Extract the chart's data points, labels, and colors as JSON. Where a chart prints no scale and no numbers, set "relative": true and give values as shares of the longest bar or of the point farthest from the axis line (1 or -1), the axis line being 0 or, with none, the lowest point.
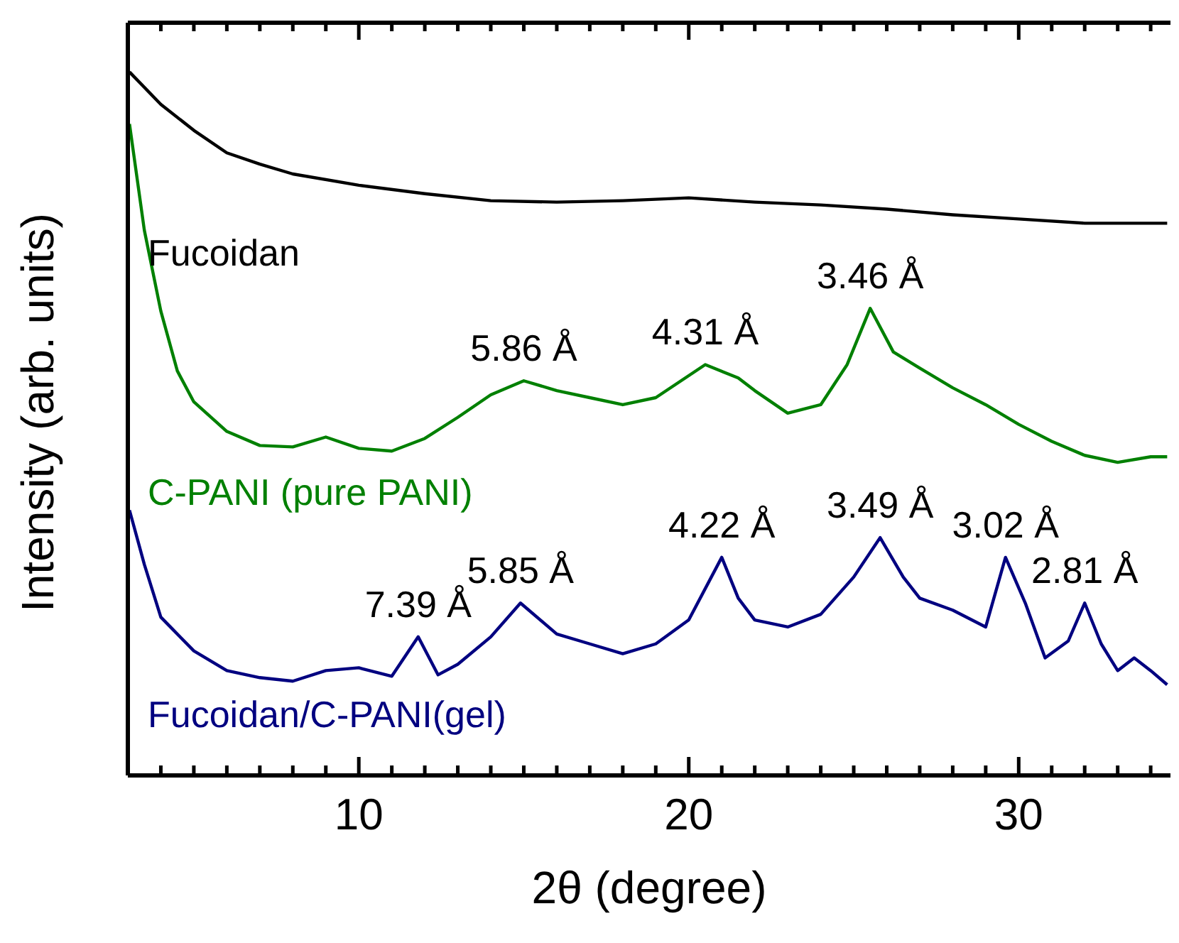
{
  "chart_data": {
    "type": "line",
    "relative": true,
    "xlabel": "2θ (degree)",
    "ylabel": "Intensity (arb. units)",
    "xlim": [
      3,
      34.6
    ],
    "xticks": [
      {
        "value": 4,
        "label": null
      },
      {
        "value": 5,
        "label": null
      },
      {
        "value": 6,
        "label": null
      },
      {
        "value": 7,
        "label": null
      },
      {
        "value": 8,
        "label": null
      },
      {
        "value": 9,
        "label": null
      },
      10,
      {
        "value": 11,
        "label": null
      },
      {
        "value": 12,
        "label": null
      },
      {
        "value": 13,
        "label": null
      },
      {
        "value": 14,
        "label": null
      },
      {
        "value": 15,
        "label": null
      },
      {
        "value": 16,
        "label": null
      },
      {
        "value": 17,
        "label": null
      },
      {
        "value": 18,
        "label": null
      },
      {
        "value": 19,
        "label": null
      },
      20,
      {
        "value": 21,
        "label": null
      },
      {
        "value": 22,
        "label": null
      },
      {
        "value": 23,
        "label": null
      },
      {
        "value": 24,
        "label": null
      },
      {
        "value": 25,
        "label": null
      },
      {
        "value": 26,
        "label": null
      },
      {
        "value": 27,
        "label": null
      },
      {
        "value": 28,
        "label": null
      },
      {
        "value": 29,
        "label": null
      },
      30,
      {
        "value": 31,
        "label": null
      },
      {
        "value": 32,
        "label": null
      },
      {
        "value": 33,
        "label": null
      },
      {
        "value": 34,
        "label": null
      }
    ],
    "series": [
      {
        "name": "Fucoidan",
        "color": "#000000",
        "x": [
          3.05,
          4,
          5,
          6,
          7,
          8,
          10,
          12,
          14,
          16,
          18,
          20,
          22,
          24,
          26,
          28,
          30,
          32,
          34,
          34.5
        ],
        "values": [
          1,
          0.954,
          0.917,
          0.885,
          0.869,
          0.855,
          0.839,
          0.827,
          0.817,
          0.815,
          0.817,
          0.821,
          0.815,
          0.811,
          0.805,
          0.797,
          0.791,
          0.785,
          0.785,
          0.785
        ]
      },
      {
        "name": "C-PANI (pure PANI)",
        "color": "#008000",
        "x": [
          3.05,
          3.5,
          4,
          4.5,
          5,
          6,
          7,
          8,
          9,
          10,
          11,
          12,
          13,
          14,
          15,
          16,
          17,
          18,
          19,
          20.5,
          21.5,
          22,
          23,
          24,
          24.8,
          25.5,
          26.2,
          27,
          28,
          29,
          30,
          31,
          32,
          33,
          34,
          34.5
        ],
        "values": [
          0.926,
          0.775,
          0.66,
          0.575,
          0.531,
          0.489,
          0.469,
          0.467,
          0.481,
          0.465,
          0.461,
          0.479,
          0.509,
          0.541,
          0.561,
          0.547,
          0.537,
          0.527,
          0.537,
          0.584,
          0.565,
          0.547,
          0.515,
          0.527,
          0.584,
          0.664,
          0.602,
          0.579,
          0.551,
          0.527,
          0.499,
          0.475,
          0.455,
          0.445,
          0.453,
          0.453
        ]
      },
      {
        "name": "Fucoidan/C-PANI(gel)",
        "color": "#000080",
        "x": [
          3.05,
          3.5,
          4,
          5,
          6,
          7,
          8,
          9,
          10,
          11,
          11.8,
          12.4,
          13,
          14,
          14.9,
          16,
          17,
          18,
          19,
          20,
          21,
          21.5,
          22,
          23,
          24,
          25,
          25.8,
          26.5,
          27,
          28,
          29,
          29.6,
          30.2,
          30.8,
          31.5,
          32,
          32.5,
          33,
          33.5,
          34,
          34.5
        ],
        "values": [
          0.377,
          0.3,
          0.225,
          0.177,
          0.149,
          0.139,
          0.134,
          0.149,
          0.153,
          0.141,
          0.197,
          0.143,
          0.158,
          0.197,
          0.245,
          0.201,
          0.187,
          0.173,
          0.187,
          0.221,
          0.31,
          0.252,
          0.221,
          0.211,
          0.229,
          0.282,
          0.338,
          0.282,
          0.252,
          0.235,
          0.211,
          0.31,
          0.245,
          0.167,
          0.191,
          0.245,
          0.187,
          0.149,
          0.167,
          0.149,
          0.129
        ]
      }
    ],
    "annotations": [
      {
        "text": "5.86 Å",
        "x": 15,
        "y": 0.561
      },
      {
        "text": "4.31 Å",
        "x": 20.5,
        "y": 0.584
      },
      {
        "text": "3.46 Å",
        "x": 25.5,
        "y": 0.664
      },
      {
        "text": "7.39 Å",
        "x": 11.8,
        "y": 0.197
      },
      {
        "text": "5.85 Å",
        "x": 14.9,
        "y": 0.245
      },
      {
        "text": "4.22 Å",
        "x": 21,
        "y": 0.31
      },
      {
        "text": "3.49 Å",
        "x": 25.8,
        "y": 0.338
      },
      {
        "text": "3.02 Å",
        "x": 29.6,
        "y": 0.31
      },
      {
        "text": "2.81 Å",
        "x": 32,
        "y": 0.245
      }
    ]
  }
}
